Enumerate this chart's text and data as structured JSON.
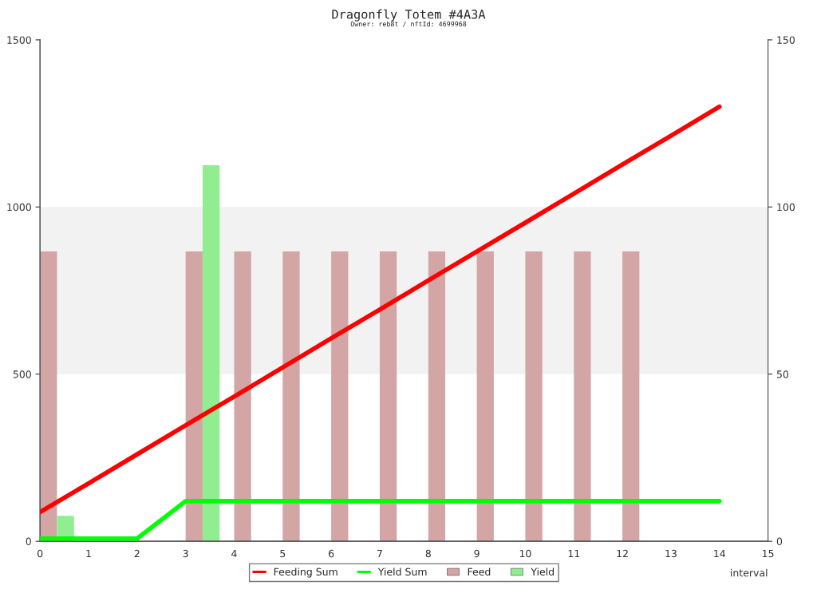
{
  "chart_data": {
    "type": "line",
    "title": "Dragonfly Totem #4A3A",
    "subtitle": "Owner: reb8t / nftId: 4699968",
    "xlabel": "interval",
    "xlim": [
      0,
      15
    ],
    "xticks": [
      0,
      1,
      2,
      3,
      4,
      5,
      6,
      7,
      8,
      9,
      10,
      11,
      12,
      13,
      14,
      15
    ],
    "ylim": [
      0,
      1500
    ],
    "yticks": [
      0,
      500,
      1000,
      1500
    ],
    "y2lim": [
      0,
      150
    ],
    "y2ticks": [
      0,
      50,
      100,
      150
    ],
    "bands": [
      {
        "axis": "y",
        "from": 500,
        "to": 1000,
        "color": "#f2f2f2"
      }
    ],
    "grid": false,
    "legend": "bottom",
    "series": [
      {
        "name": "Feeding Sum",
        "color": "#ff0000",
        "x": [
          0,
          1,
          2,
          3,
          4,
          5,
          6,
          7,
          8,
          9,
          10,
          11,
          12,
          13,
          14
        ],
        "values": [
          87,
          173,
          260,
          347,
          433,
          520,
          607,
          693,
          780,
          867,
          953,
          1040,
          1127,
          1213,
          1300
        ]
      },
      {
        "name": "Yield Sum",
        "color": "#00ff00",
        "x": [
          0,
          1,
          2,
          3,
          4,
          5,
          6,
          7,
          8,
          9,
          10,
          11,
          12,
          13,
          14
        ],
        "values": [
          8,
          8,
          8,
          120,
          120,
          120,
          120,
          120,
          120,
          120,
          120,
          120,
          120,
          120,
          120
        ]
      },
      {
        "name": "Feed",
        "type": "bar",
        "axis": "y2",
        "color": "#d4a5a5",
        "x": [
          0,
          3,
          4,
          5,
          6,
          7,
          8,
          9,
          10,
          11,
          12
        ],
        "values": [
          86.7,
          86.7,
          86.7,
          86.7,
          86.7,
          86.7,
          86.7,
          86.7,
          86.7,
          86.7,
          86.7
        ]
      },
      {
        "name": "Yield",
        "type": "bar",
        "axis": "y2",
        "color": "#90ee90",
        "x": [
          0,
          3
        ],
        "values": [
          7.6,
          112.5
        ]
      }
    ]
  }
}
